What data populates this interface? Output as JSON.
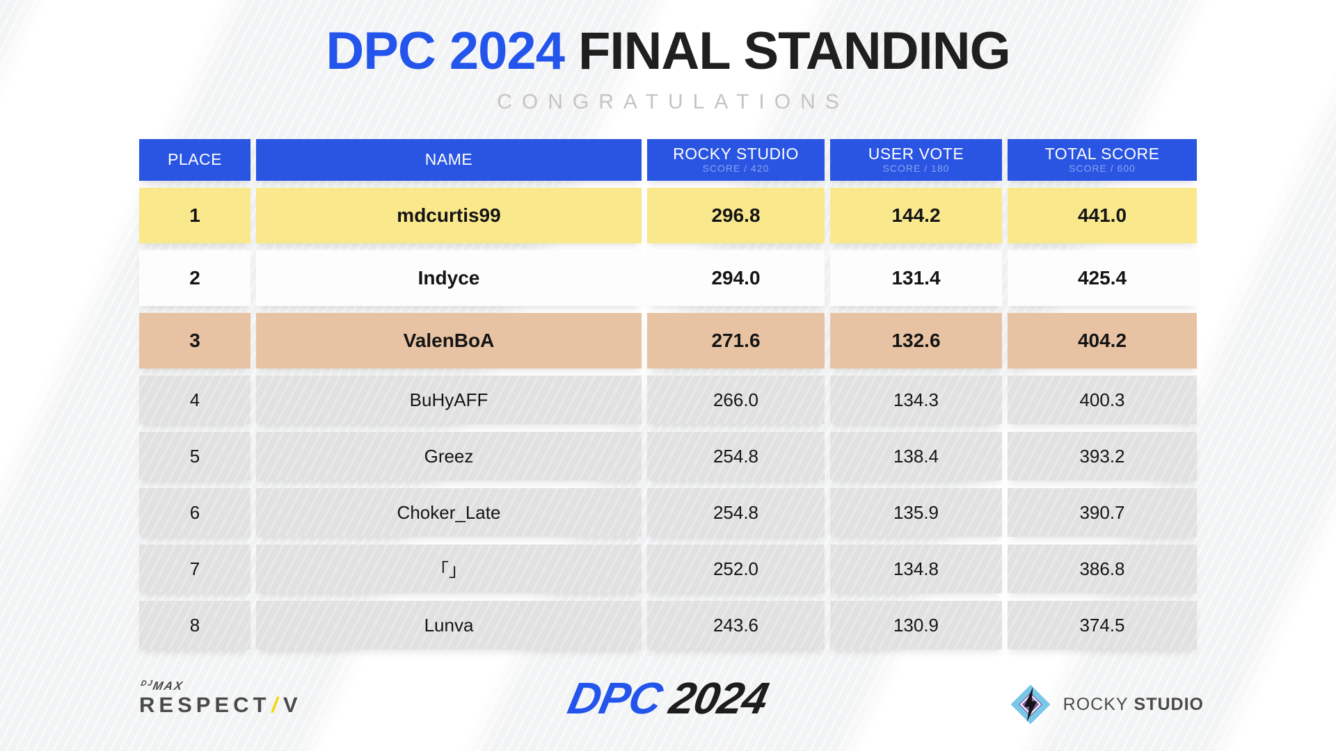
{
  "header": {
    "title_primary": "DPC 2024",
    "title_secondary": "FINAL STANDING",
    "subtitle": "CONGRATULATIONS"
  },
  "table": {
    "columns": [
      {
        "key": "place",
        "label": "PLACE",
        "sub": ""
      },
      {
        "key": "name",
        "label": "NAME",
        "sub": ""
      },
      {
        "key": "rocky",
        "label": "ROCKY STUDIO",
        "sub": "SCORE / 420"
      },
      {
        "key": "user",
        "label": "USER VOTE",
        "sub": "SCORE / 180"
      },
      {
        "key": "total",
        "label": "TOTAL SCORE",
        "sub": "SCORE / 600"
      }
    ],
    "rows": [
      {
        "place": "1",
        "name": "mdcurtis99",
        "rocky": "296.8",
        "user": "144.2",
        "total": "441.0",
        "tier": "gold"
      },
      {
        "place": "2",
        "name": "Indyce",
        "rocky": "294.0",
        "user": "131.4",
        "total": "425.4",
        "tier": "silver"
      },
      {
        "place": "3",
        "name": "ValenBoA",
        "rocky": "271.6",
        "user": "132.6",
        "total": "404.2",
        "tier": "bronze"
      },
      {
        "place": "4",
        "name": "BuHyAFF",
        "rocky": "266.0",
        "user": "134.3",
        "total": "400.3",
        "tier": "gray"
      },
      {
        "place": "5",
        "name": "Greez",
        "rocky": "254.8",
        "user": "138.4",
        "total": "393.2",
        "tier": "gray"
      },
      {
        "place": "6",
        "name": "Choker_Late",
        "rocky": "254.8",
        "user": "135.9",
        "total": "390.7",
        "tier": "gray"
      },
      {
        "place": "7",
        "name": "「」",
        "rocky": "252.0",
        "user": "134.8",
        "total": "386.8",
        "tier": "gray"
      },
      {
        "place": "8",
        "name": "Lunva",
        "rocky": "243.6",
        "user": "130.9",
        "total": "374.5",
        "tier": "gray"
      }
    ]
  },
  "footer": {
    "djmax_prefix": "DJ",
    "djmax_main": "MAX",
    "respect": "RESPECT",
    "slash": "/",
    "v": "V",
    "dpc": "DPC",
    "dpc_year": "2024",
    "rocky_word1": "ROCKY",
    "rocky_word2": "STUDIO"
  },
  "colors": {
    "header-blue": "#2a55e2",
    "title-blue": "#2355ec",
    "title-dark": "#1f1f1f",
    "subtitle-gray": "#c6c4c1",
    "gold": "#fae88d",
    "silver": "#fdfdfd",
    "bronze": "#e8c3a3",
    "row-gray": "#e1e1e1",
    "text-dark": "#141414",
    "logo-gray": "#4a4a4a",
    "slash-yellow": "#f2d600",
    "icon-blue": "#79c7e9",
    "icon-purple": "#7e5fa9",
    "bolt-black": "#151515"
  },
  "chart_data": {
    "type": "table",
    "title": "DPC 2024 FINAL STANDING",
    "subtitle": "CONGRATULATIONS",
    "columns": [
      "PLACE",
      "NAME",
      "ROCKY STUDIO (SCORE / 420)",
      "USER VOTE (SCORE / 180)",
      "TOTAL SCORE (SCORE / 600)"
    ],
    "rows": [
      [
        1,
        "mdcurtis99",
        296.8,
        144.2,
        441.0
      ],
      [
        2,
        "Indyce",
        294.0,
        131.4,
        425.4
      ],
      [
        3,
        "ValenBoA",
        271.6,
        132.6,
        404.2
      ],
      [
        4,
        "BuHyAFF",
        266.0,
        134.3,
        400.3
      ],
      [
        5,
        "Greez",
        254.8,
        138.4,
        393.2
      ],
      [
        6,
        "Choker_Late",
        254.8,
        135.9,
        390.7
      ],
      [
        7,
        "「」",
        252.0,
        134.8,
        386.8
      ],
      [
        8,
        "Lunva",
        243.6,
        130.9,
        374.5
      ]
    ]
  }
}
